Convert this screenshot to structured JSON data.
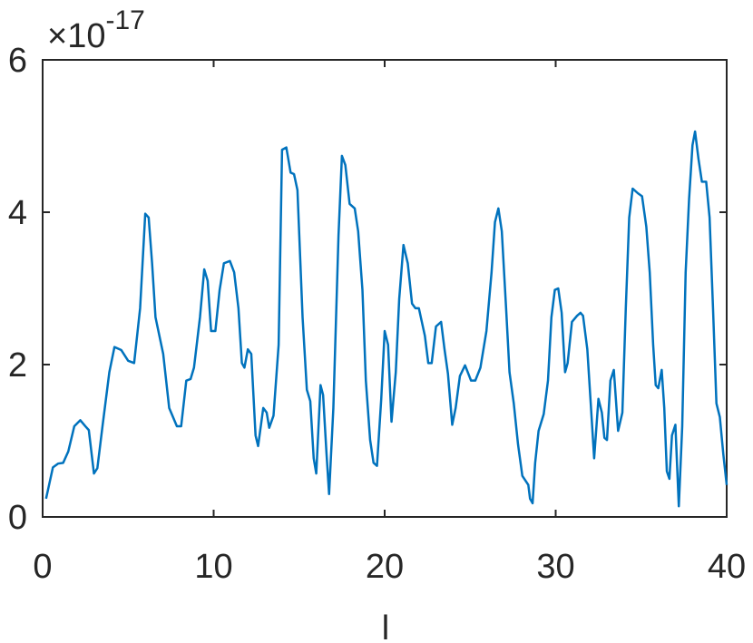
{
  "chart_data": {
    "type": "line",
    "x_label": "l",
    "y_multiplier": {
      "base": "×10",
      "exponent": "-17"
    },
    "xlim": [
      0,
      40
    ],
    "xticks": [
      0,
      10,
      20,
      30,
      40
    ],
    "ylim": [
      0,
      6
    ],
    "yticks": [
      0,
      2,
      4,
      6
    ],
    "grid": false,
    "x": [
      0.2,
      0.6,
      0.9,
      1.2,
      1.5,
      1.85,
      2.2,
      2.5,
      2.7,
      3.0,
      3.2,
      3.5,
      3.9,
      4.2,
      4.6,
      5.0,
      5.35,
      5.7,
      6.0,
      6.2,
      6.4,
      6.6,
      7.05,
      7.4,
      7.85,
      8.1,
      8.4,
      8.65,
      8.85,
      9.2,
      9.45,
      9.65,
      9.85,
      10.1,
      10.35,
      10.6,
      10.95,
      11.2,
      11.45,
      11.65,
      11.8,
      12.0,
      12.2,
      12.45,
      12.6,
      12.9,
      13.1,
      13.25,
      13.5,
      13.8,
      14.0,
      14.25,
      14.5,
      14.7,
      14.9,
      15.2,
      15.45,
      15.65,
      15.85,
      16.0,
      16.25,
      16.4,
      16.6,
      16.75,
      17.0,
      17.3,
      17.5,
      17.7,
      17.95,
      18.25,
      18.45,
      18.7,
      18.9,
      19.15,
      19.35,
      19.55,
      19.8,
      20.0,
      20.2,
      20.4,
      20.65,
      20.85,
      21.1,
      21.35,
      21.6,
      21.8,
      22.0,
      22.35,
      22.55,
      22.75,
      23.0,
      23.3,
      23.5,
      23.7,
      23.95,
      24.15,
      24.4,
      24.7,
      25.05,
      25.3,
      25.6,
      25.95,
      26.25,
      26.45,
      26.65,
      26.85,
      27.1,
      27.3,
      27.55,
      27.8,
      28.05,
      28.4,
      28.5,
      28.65,
      28.8,
      29.0,
      29.3,
      29.55,
      29.75,
      29.95,
      30.15,
      30.35,
      30.55,
      30.7,
      30.95,
      31.25,
      31.45,
      31.6,
      31.85,
      32.05,
      32.25,
      32.5,
      32.7,
      32.85,
      33.0,
      33.2,
      33.4,
      33.65,
      33.9,
      34.1,
      34.3,
      34.5,
      34.8,
      35.05,
      35.3,
      35.5,
      35.7,
      35.85,
      36.0,
      36.2,
      36.35,
      36.5,
      36.65,
      36.8,
      37.0,
      37.2,
      37.4,
      37.6,
      37.8,
      38.0,
      38.15,
      38.35,
      38.55,
      38.8,
      39.0,
      39.2,
      39.4,
      39.6,
      39.8,
      40.0
    ],
    "series": [
      {
        "color": "#0072bd",
        "values": [
          0.24,
          0.65,
          0.7,
          0.71,
          0.86,
          1.19,
          1.27,
          1.19,
          1.14,
          0.57,
          0.64,
          1.19,
          1.9,
          2.23,
          2.19,
          2.05,
          2.02,
          2.74,
          3.98,
          3.93,
          3.33,
          2.62,
          2.14,
          1.43,
          1.19,
          1.19,
          1.79,
          1.81,
          1.96,
          2.62,
          3.25,
          3.1,
          2.44,
          2.44,
          2.98,
          3.33,
          3.36,
          3.21,
          2.74,
          2.02,
          1.96,
          2.2,
          2.14,
          1.07,
          0.93,
          1.43,
          1.37,
          1.17,
          1.33,
          2.26,
          4.82,
          4.85,
          4.52,
          4.5,
          4.29,
          2.62,
          1.67,
          1.52,
          0.77,
          0.57,
          1.73,
          1.6,
          0.83,
          0.3,
          1.43,
          3.69,
          4.74,
          4.62,
          4.11,
          4.05,
          3.75,
          2.98,
          1.79,
          1.01,
          0.71,
          0.67,
          1.55,
          2.44,
          2.26,
          1.25,
          1.9,
          2.86,
          3.57,
          3.33,
          2.8,
          2.74,
          2.74,
          2.38,
          2.02,
          2.02,
          2.5,
          2.56,
          2.2,
          1.88,
          1.21,
          1.43,
          1.85,
          1.99,
          1.79,
          1.79,
          1.96,
          2.44,
          3.21,
          3.87,
          4.05,
          3.75,
          2.74,
          1.9,
          1.49,
          0.95,
          0.54,
          0.42,
          0.24,
          0.18,
          0.71,
          1.13,
          1.35,
          1.79,
          2.62,
          2.98,
          3.0,
          2.68,
          1.9,
          2.02,
          2.56,
          2.64,
          2.68,
          2.64,
          2.2,
          1.49,
          0.77,
          1.55,
          1.37,
          1.04,
          1.01,
          1.79,
          1.93,
          1.13,
          1.37,
          2.74,
          3.93,
          4.31,
          4.25,
          4.21,
          3.81,
          3.21,
          2.26,
          1.73,
          1.69,
          1.93,
          1.43,
          0.6,
          0.5,
          1.07,
          1.21,
          0.14,
          1.19,
          3.21,
          4.17,
          4.88,
          5.06,
          4.7,
          4.4,
          4.4,
          3.93,
          2.74,
          1.49,
          1.31,
          0.83,
          0.42
        ]
      }
    ]
  }
}
